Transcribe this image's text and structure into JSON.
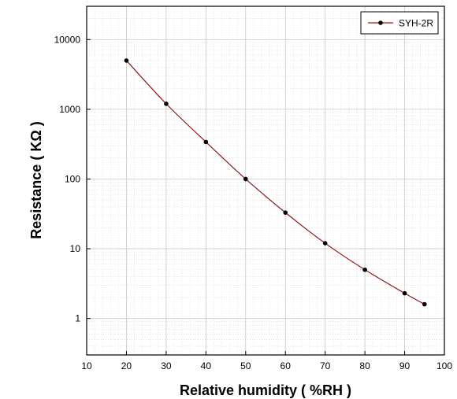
{
  "colors": {
    "series": "#8b1a1a",
    "marker": "#000000",
    "frame": "#000000",
    "grid_major": "#c8c8c8",
    "grid_minor": "#d4d4d4"
  },
  "chart_data": {
    "type": "line",
    "title": "",
    "xlabel": "Relative humidity ( %RH )",
    "ylabel": "Resistance ( KΩ )",
    "xlim": [
      10,
      100
    ],
    "ylim": [
      0.3,
      30000
    ],
    "y_scale": "log",
    "grid": true,
    "legend_position": "top-right",
    "x_ticks": [
      10,
      20,
      30,
      40,
      50,
      60,
      70,
      80,
      90,
      100
    ],
    "y_ticks": [
      1,
      10,
      100,
      1000,
      10000
    ],
    "series": [
      {
        "name": "SYH-2R",
        "marker": "circle",
        "x": [
          20,
          30,
          40,
          50,
          60,
          70,
          80,
          90,
          95
        ],
        "y": [
          5000,
          1200,
          340,
          100,
          33,
          12,
          5,
          2.3,
          1.6
        ]
      }
    ]
  }
}
